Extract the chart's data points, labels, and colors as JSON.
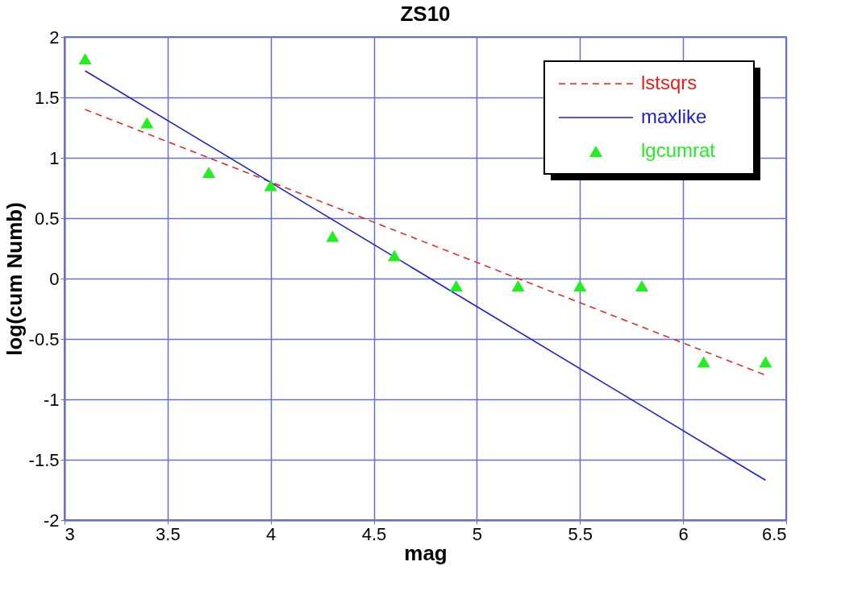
{
  "chart_data": {
    "type": "line",
    "title": "ZS10",
    "xlabel": "mag",
    "ylabel": "log(cum Numb)",
    "xlim": [
      3,
      6.5
    ],
    "xticks": [
      3,
      3.5,
      4,
      4.5,
      5,
      5.5,
      6,
      6.5
    ],
    "ylim": [
      -2,
      2
    ],
    "yticks": [
      -2,
      -1.5,
      -1,
      -0.5,
      0,
      0.5,
      1,
      1.5,
      2
    ],
    "grid": true,
    "legend": "top right",
    "series": [
      {
        "name": "lstsqrs",
        "line_style": "dashed",
        "color": "#e8201c",
        "x": [
          3.1,
          6.4
        ],
        "values": [
          1.4,
          -0.8
        ]
      },
      {
        "name": "maxlike",
        "line_style": "solid",
        "color": "#1c1cd8",
        "x": [
          3.1,
          6.4
        ],
        "values": [
          1.72,
          -1.67
        ]
      },
      {
        "name": "lgcumrat",
        "type": "scatter",
        "marker": "triangle",
        "color": "#22ee22",
        "x": [
          3.1,
          3.4,
          3.7,
          4.0,
          4.3,
          4.6,
          4.9,
          5.2,
          5.5,
          5.8,
          6.1,
          6.4
        ],
        "values": [
          1.82,
          1.29,
          0.88,
          0.77,
          0.35,
          0.19,
          -0.06,
          -0.06,
          -0.06,
          -0.06,
          -0.69,
          -0.69
        ]
      }
    ]
  }
}
